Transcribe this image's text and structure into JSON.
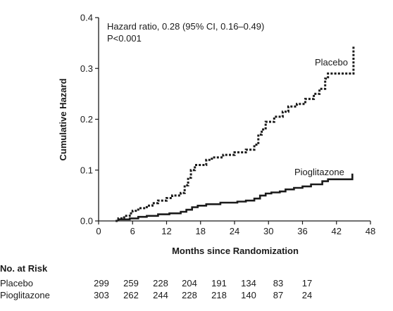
{
  "chart_data": {
    "type": "line",
    "xlabel": "Months since Randomization",
    "ylabel": "Cumulative Hazard",
    "xlim": [
      0,
      48
    ],
    "ylim": [
      0.0,
      0.4
    ],
    "xticks": [
      "0",
      "6",
      "12",
      "18",
      "24",
      "30",
      "36",
      "42",
      "48"
    ],
    "yticks": [
      "0.0",
      "0.1",
      "0.2",
      "0.3",
      "0.4"
    ],
    "annotation_lines": [
      "Hazard ratio, 0.28 (95% CI, 0.16–0.49)",
      "P<0.001"
    ],
    "series": [
      {
        "name": "Placebo",
        "style": "dotted",
        "color": "#1a1a1a",
        "points": [
          [
            3,
            0
          ],
          [
            3.5,
            0.005
          ],
          [
            4.5,
            0.01
          ],
          [
            5.5,
            0.015
          ],
          [
            6,
            0.02
          ],
          [
            7,
            0.025
          ],
          [
            8.5,
            0.03
          ],
          [
            9.5,
            0.035
          ],
          [
            10.5,
            0.04
          ],
          [
            12,
            0.045
          ],
          [
            13,
            0.05
          ],
          [
            14.5,
            0.055
          ],
          [
            15.2,
            0.07
          ],
          [
            15.8,
            0.085
          ],
          [
            16.3,
            0.1
          ],
          [
            17,
            0.11
          ],
          [
            19,
            0.12
          ],
          [
            20,
            0.125
          ],
          [
            22,
            0.13
          ],
          [
            24,
            0.135
          ],
          [
            26,
            0.14
          ],
          [
            27.5,
            0.15
          ],
          [
            28.2,
            0.17
          ],
          [
            28.8,
            0.18
          ],
          [
            29.5,
            0.195
          ],
          [
            31,
            0.205
          ],
          [
            32.5,
            0.215
          ],
          [
            33.5,
            0.225
          ],
          [
            35,
            0.23
          ],
          [
            36.5,
            0.24
          ],
          [
            38,
            0.25
          ],
          [
            39,
            0.26
          ],
          [
            40,
            0.28
          ],
          [
            40.5,
            0.29
          ],
          [
            45,
            0.3
          ],
          [
            45,
            0.345
          ]
        ]
      },
      {
        "name": "Pioglitazone",
        "style": "solid",
        "color": "#1a1a1a",
        "points": [
          [
            3.5,
            0
          ],
          [
            3.5,
            0.003
          ],
          [
            5.5,
            0.005
          ],
          [
            7,
            0.008
          ],
          [
            8.5,
            0.01
          ],
          [
            10.5,
            0.013
          ],
          [
            12.5,
            0.015
          ],
          [
            14.5,
            0.018
          ],
          [
            15.5,
            0.022
          ],
          [
            16.5,
            0.027
          ],
          [
            17.5,
            0.03
          ],
          [
            19,
            0.033
          ],
          [
            21.5,
            0.036
          ],
          [
            24.5,
            0.038
          ],
          [
            26,
            0.04
          ],
          [
            27.5,
            0.044
          ],
          [
            28.5,
            0.05
          ],
          [
            29.5,
            0.054
          ],
          [
            30.5,
            0.056
          ],
          [
            32,
            0.058
          ],
          [
            33,
            0.062
          ],
          [
            34.5,
            0.065
          ],
          [
            36,
            0.068
          ],
          [
            37.5,
            0.072
          ],
          [
            39.5,
            0.078
          ],
          [
            40.5,
            0.082
          ],
          [
            44.8,
            0.085
          ],
          [
            44.8,
            0.093
          ]
        ]
      }
    ]
  },
  "risk_table": {
    "title": "No. at Risk",
    "rows": [
      {
        "label": "Placebo",
        "values": [
          "299",
          "259",
          "228",
          "204",
          "191",
          "134",
          "83",
          "17"
        ]
      },
      {
        "label": "Pioglitazone",
        "values": [
          "303",
          "262",
          "244",
          "228",
          "218",
          "140",
          "87",
          "24"
        ]
      }
    ]
  }
}
